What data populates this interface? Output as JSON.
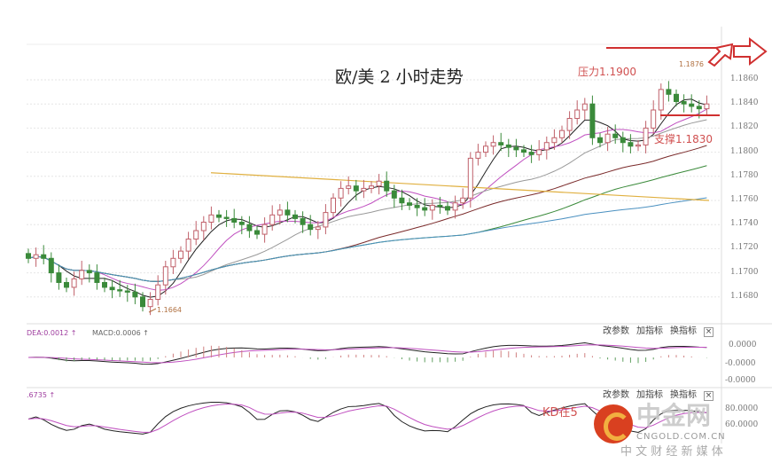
{
  "title": "欧/美 2 小时走势",
  "annotations": {
    "resistance": "压力1.1900",
    "high": "1.1876",
    "support": "支撑1.1830",
    "low": "1.1664"
  },
  "macd_panel": {
    "label_dea": "DEA:0.0012 ↑",
    "label_macd": "MACD:0.0006 ↑",
    "axis": [
      "0.0000",
      "-0.0000",
      "-0.0000"
    ]
  },
  "kd_panel": {
    "label": ".6735 ↑",
    "note": "KD在5",
    "axis": [
      "80.0000",
      "60.0000"
    ]
  },
  "panel_buttons": {
    "params": "改参数",
    "add": "加指标",
    "change": "换指标",
    "close": "×"
  },
  "watermark": {
    "brand": "中金网",
    "domain": "CNGOLD.COM.CN",
    "slogan": "中 文 财 经 新 媒 体"
  },
  "colors": {
    "up": "#c0606a",
    "down": "#3a8a3a",
    "annotation": "#d04040",
    "ma": [
      "#222222",
      "#c050c0",
      "#999999",
      "#7a2a2a",
      "#3a8a3a",
      "#4a90c0"
    ],
    "trend": "#e0b040"
  },
  "chart_data": {
    "type": "candlestick",
    "title": "欧/美 2 小时走势",
    "ylim": [
      1.166,
      1.188
    ],
    "yticks": [
      "1.1860",
      "1.1840",
      "1.1820",
      "1.1800",
      "1.1780",
      "1.1760",
      "1.1740",
      "1.1720",
      "1.1700",
      "1.1680"
    ],
    "grid": true,
    "ma_periods": [
      5,
      10,
      20,
      40,
      60,
      90
    ],
    "closes": [
      1.1712,
      1.1715,
      1.1712,
      1.17,
      1.1692,
      1.1688,
      1.1695,
      1.1702,
      1.17,
      1.1692,
      1.1688,
      1.1686,
      1.1685,
      1.1684,
      1.168,
      1.1672,
      1.1678,
      1.169,
      1.1705,
      1.1712,
      1.1718,
      1.1728,
      1.1735,
      1.1742,
      1.1748,
      1.1746,
      1.1745,
      1.1742,
      1.174,
      1.1735,
      1.1732,
      1.174,
      1.1748,
      1.1752,
      1.1748,
      1.1745,
      1.174,
      1.1736,
      1.1738,
      1.175,
      1.1762,
      1.177,
      1.1772,
      1.1768,
      1.177,
      1.1772,
      1.1776,
      1.1768,
      1.1762,
      1.1758,
      1.1756,
      1.1754,
      1.1752,
      1.1756,
      1.1755,
      1.1752,
      1.1758,
      1.1762,
      1.1795,
      1.18,
      1.1805,
      1.1808,
      1.1806,
      1.1804,
      1.1802,
      1.18,
      1.1798,
      1.1802,
      1.1808,
      1.1812,
      1.1818,
      1.1828,
      1.1835,
      1.184,
      1.1812,
      1.1808,
      1.1815,
      1.1812,
      1.1808,
      1.1805,
      1.1806,
      1.182,
      1.1835,
      1.1852,
      1.1848,
      1.1842,
      1.184,
      1.1838,
      1.1836,
      1.184
    ],
    "trendline": [
      1.1783,
      1.176
    ]
  }
}
